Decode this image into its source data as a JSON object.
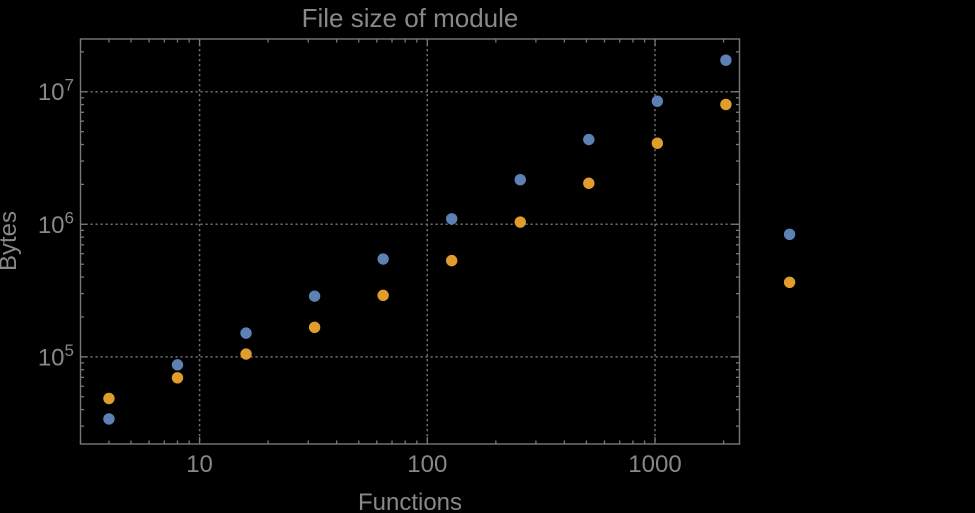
{
  "chart_data": {
    "type": "scatter",
    "title": "File size of module",
    "xlabel": "Functions",
    "ylabel": "Bytes",
    "log_x": true,
    "log_y": true,
    "grid": "dotted lines at major decades",
    "xlim": [
      3,
      2350
    ],
    "ylim": [
      22000,
      25000000
    ],
    "x": [
      4,
      8,
      16,
      32,
      64,
      128,
      256,
      512,
      1024,
      2048
    ],
    "series": [
      {
        "name": "blue-series",
        "color": "#5e81b5",
        "values": [
          34000,
          87000,
          151000,
          287000,
          547000,
          1100000,
          2170000,
          4360000,
          8490000,
          17300000
        ]
      },
      {
        "name": "orange-series",
        "color": "#e19c2e",
        "values": [
          48500,
          69500,
          105000,
          167000,
          291000,
          532000,
          1040000,
          2040000,
          4090000,
          8020000
        ]
      }
    ],
    "unlabeled_right_markers": [
      {
        "color": "#5e81b5",
        "x": 3900,
        "y": 840000
      },
      {
        "color": "#e19c2e",
        "x": 3900,
        "y": 365000
      }
    ],
    "x_ticks": [
      {
        "value": 10,
        "label": "10"
      },
      {
        "value": 100,
        "label": "100"
      },
      {
        "value": 1000,
        "label": "1000"
      }
    ],
    "y_ticks": [
      {
        "value": 100000,
        "label_base": "10",
        "label_exponent": "5"
      },
      {
        "value": 1000000,
        "label_base": "10",
        "label_exponent": "6"
      },
      {
        "value": 10000000,
        "label_base": "10",
        "label_exponent": "7"
      }
    ],
    "legend_position": "right-outside, markers only (no visible label text)"
  },
  "colors": {
    "background": "#000000",
    "text": "#888888",
    "frame": "#787878",
    "grid": "#6e6e6e",
    "series_blue": "#5e81b5",
    "series_orange": "#e19c2e"
  }
}
